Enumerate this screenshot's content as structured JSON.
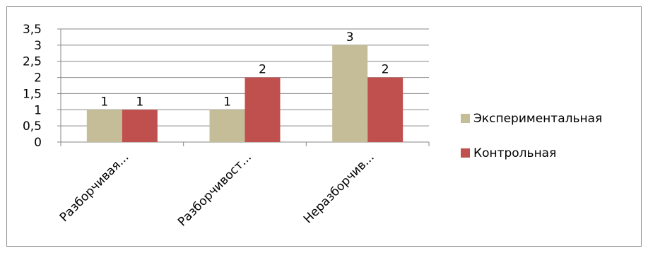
{
  "chart_data": {
    "type": "bar",
    "categories": [
      "Разборчивая...",
      "Разборчивост...",
      "Неразборчив..."
    ],
    "series": [
      {
        "name": "Экспериментальная",
        "values": [
          1,
          1,
          3
        ],
        "color": "#c4bd97"
      },
      {
        "name": "Контрольная",
        "values": [
          1,
          2,
          2
        ],
        "color": "#c0504d"
      }
    ],
    "ylim": [
      0,
      3.5
    ],
    "yticks": [
      "0",
      "0,5",
      "1",
      "1,5",
      "2",
      "2,5",
      "3",
      "3,5"
    ],
    "grid": true,
    "legend": "right",
    "data_labels": true
  }
}
